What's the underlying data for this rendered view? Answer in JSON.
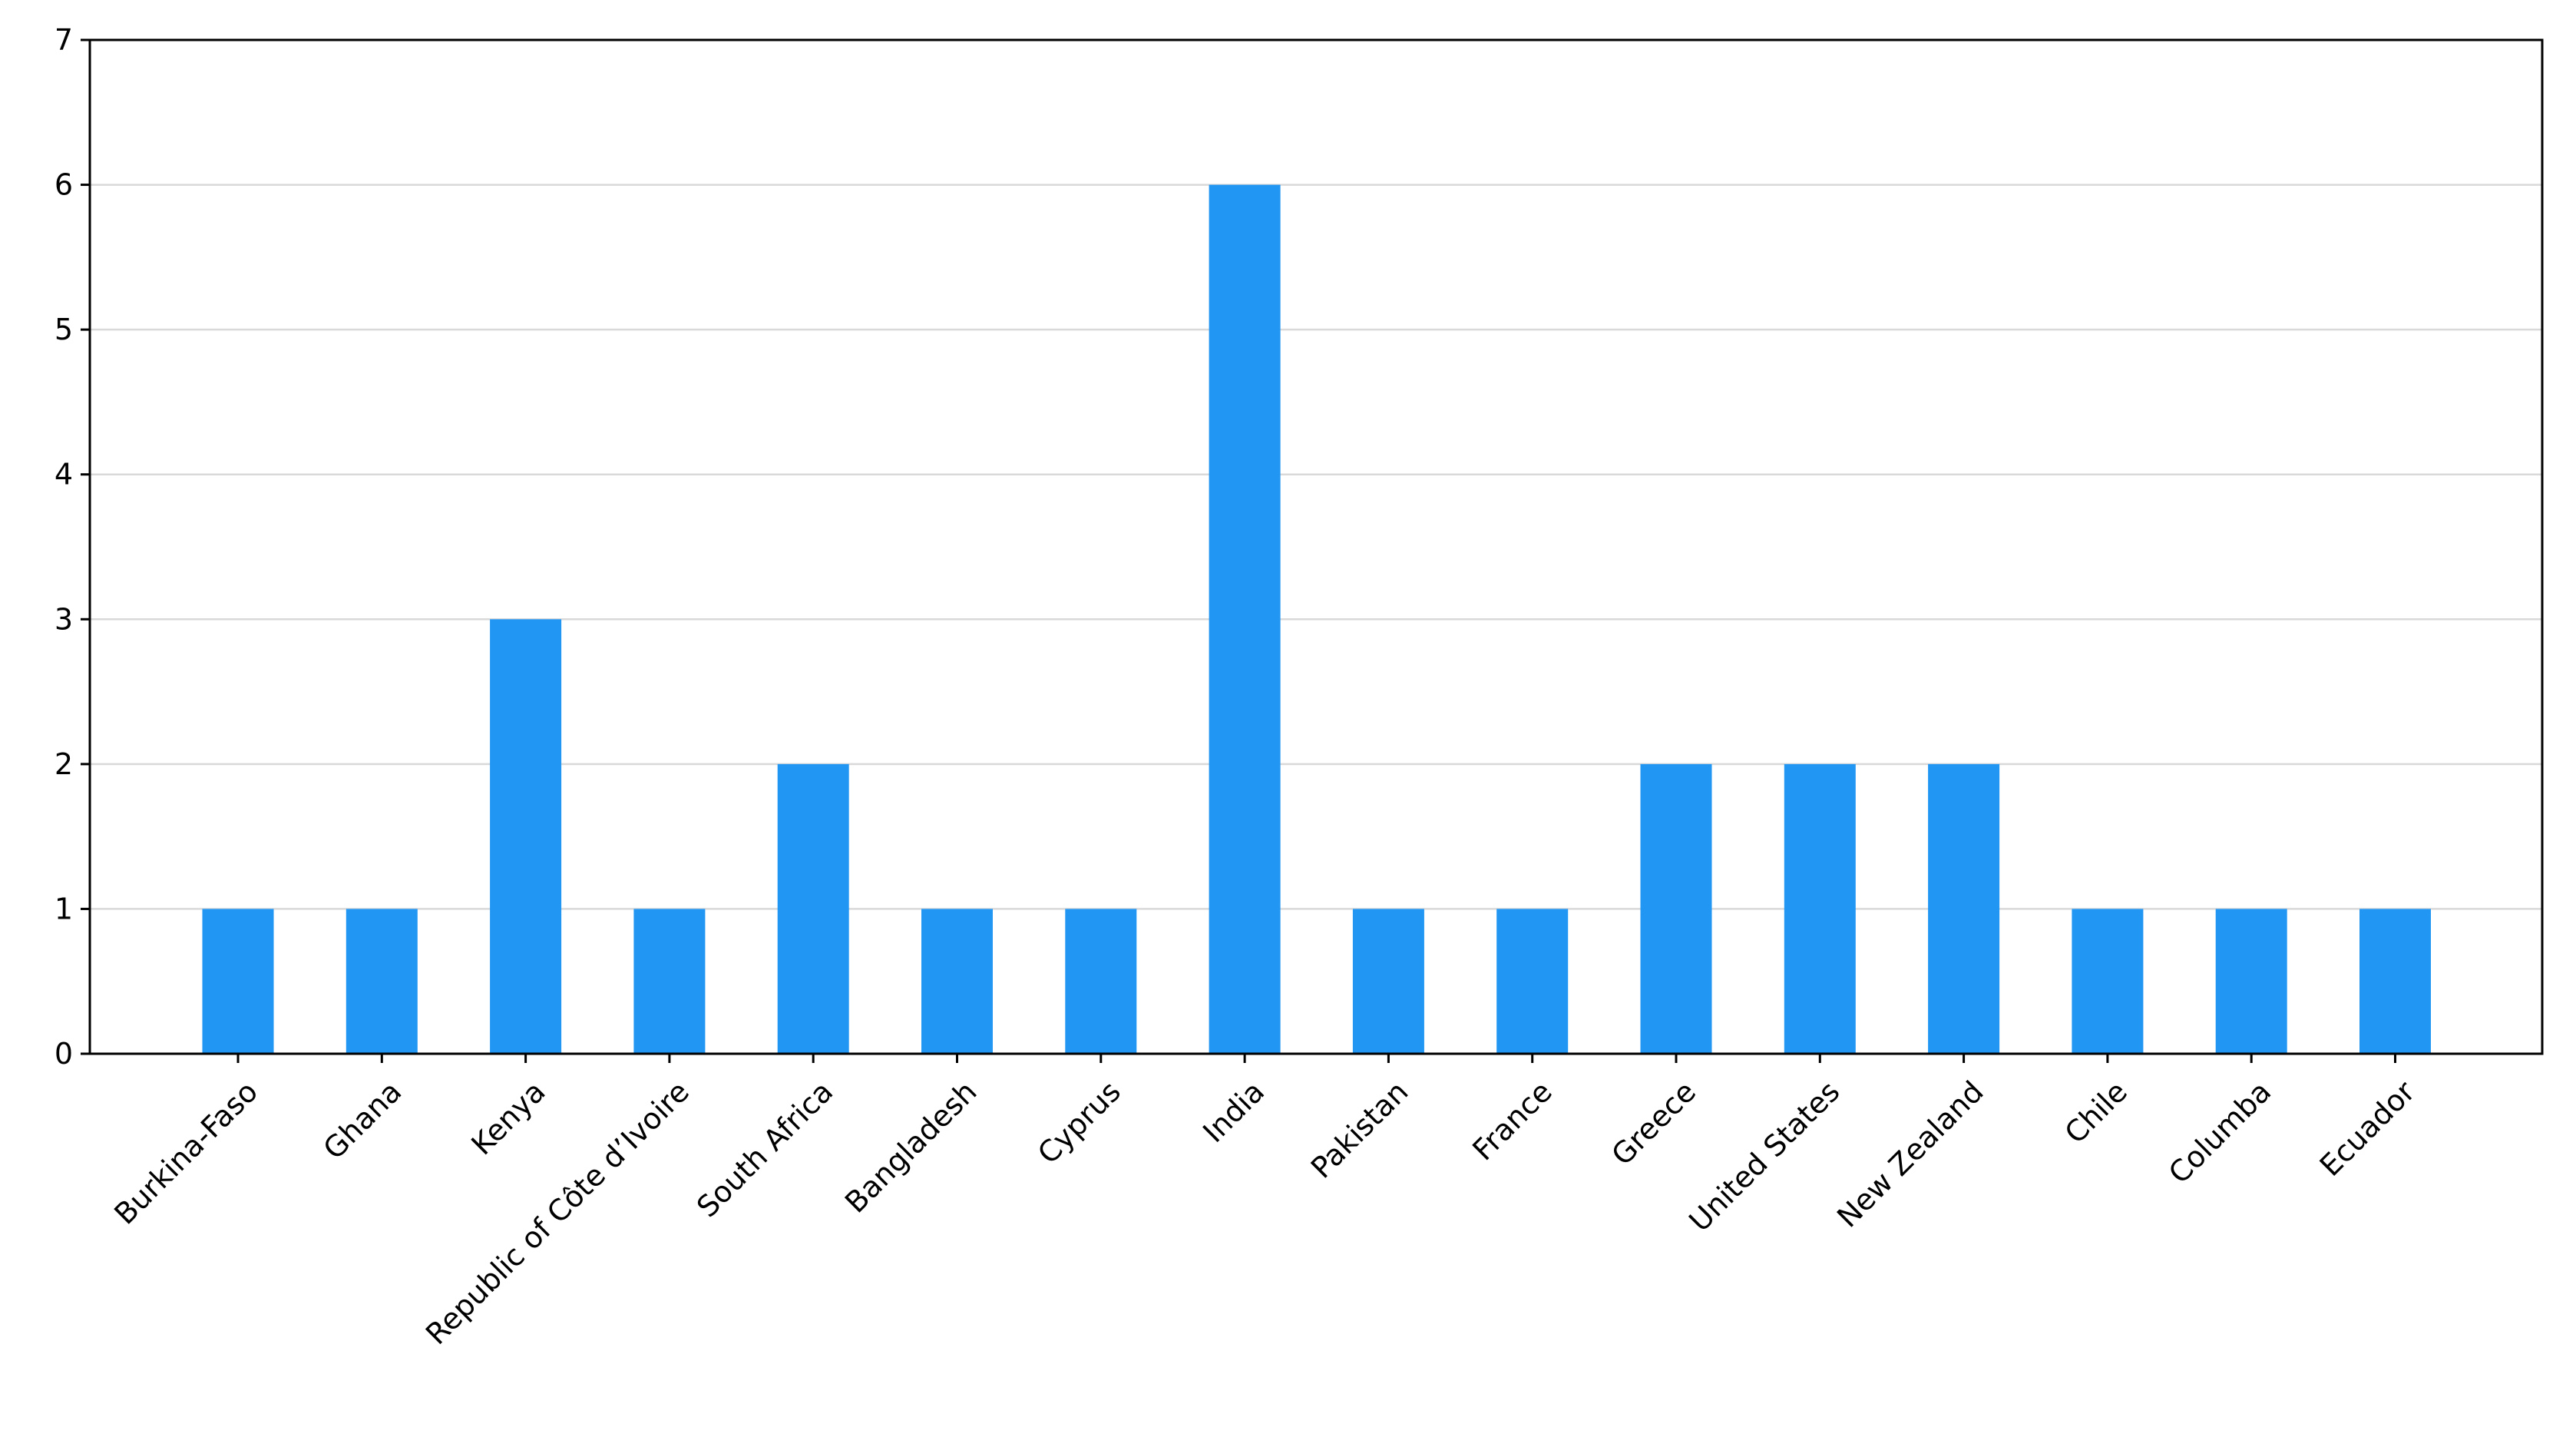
{
  "chart_data": {
    "type": "bar",
    "categories": [
      "Burkina-Faso",
      "Ghana",
      "Kenya",
      "Republic of Côte d’Ivoire",
      "South Africa",
      "Bangladesh",
      "Cyprus",
      "India",
      "Pakistan",
      "France",
      "Greece",
      "United States",
      "New Zealand",
      "Chile",
      "Columba",
      "Ecuador"
    ],
    "values": [
      1,
      1,
      3,
      1,
      2,
      1,
      1,
      6,
      1,
      1,
      2,
      2,
      2,
      1,
      1,
      1
    ],
    "ylim": [
      0,
      7
    ],
    "yticks": [
      0,
      1,
      2,
      3,
      4,
      5,
      6,
      7
    ],
    "grid": "horizontal",
    "bar_color": "#2196f3"
  }
}
